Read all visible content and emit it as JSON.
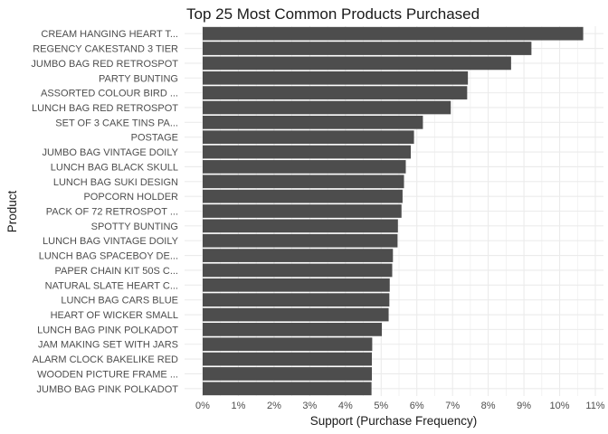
{
  "chart_data": {
    "type": "bar",
    "orientation": "horizontal",
    "title": "Top 25 Most Common Products Purchased",
    "xlabel": "Support (Purchase Frequency)",
    "ylabel": "Product",
    "xlim": [
      0,
      0.11
    ],
    "x_ticks": [
      0,
      0.01,
      0.02,
      0.03,
      0.04,
      0.05,
      0.06,
      0.07,
      0.08,
      0.09,
      0.1,
      0.11
    ],
    "x_tick_labels": [
      "0%",
      "1%",
      "2%",
      "3%",
      "4%",
      "5%",
      "6%",
      "7%",
      "8%",
      "9%",
      "10%",
      "11%"
    ],
    "grid": true,
    "bar_color": "#4d4d4d",
    "grid_color": "#ebebeb",
    "categories": [
      "CREAM HANGING HEART T...",
      "REGENCY CAKESTAND 3 TIER",
      "JUMBO BAG RED RETROSPOT",
      "PARTY BUNTING",
      "ASSORTED COLOUR BIRD ...",
      "LUNCH BAG RED RETROSPOT",
      "SET OF 3 CAKE TINS PA...",
      "POSTAGE",
      "JUMBO BAG VINTAGE DOILY",
      "LUNCH BAG BLACK SKULL",
      "LUNCH BAG SUKI DESIGN",
      "POPCORN HOLDER",
      "PACK OF 72 RETROSPOT ...",
      "SPOTTY BUNTING",
      "LUNCH BAG VINTAGE DOILY",
      "LUNCH BAG SPACEBOY DE...",
      "PAPER CHAIN KIT 50S C...",
      "NATURAL SLATE HEART C...",
      "LUNCH BAG CARS BLUE",
      "HEART OF WICKER SMALL",
      "LUNCH BAG PINK POLKADOT",
      "JAM MAKING SET WITH JARS",
      "ALARM CLOCK BAKELIKE RED",
      "WOODEN PICTURE FRAME ...",
      "JUMBO BAG PINK POLKADOT"
    ],
    "values": [
      0.1066,
      0.0921,
      0.0864,
      0.0743,
      0.0741,
      0.0695,
      0.0617,
      0.0592,
      0.0583,
      0.0569,
      0.0564,
      0.056,
      0.0557,
      0.0547,
      0.0546,
      0.0533,
      0.0531,
      0.0524,
      0.0523,
      0.0521,
      0.0502,
      0.0475,
      0.0474,
      0.0474,
      0.0473
    ]
  }
}
